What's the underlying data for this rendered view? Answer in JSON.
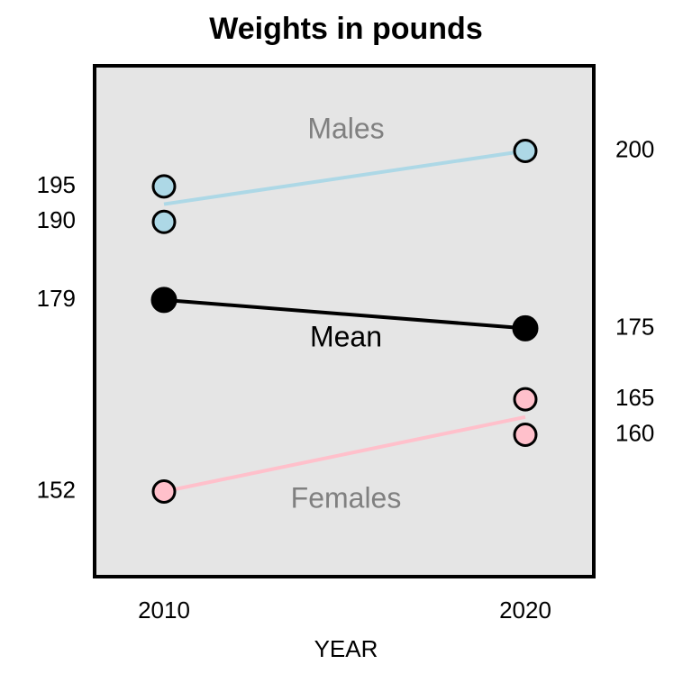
{
  "chart_data": {
    "type": "line",
    "title": "Weights in pounds",
    "xlabel": "YEAR",
    "ylabel": "",
    "categories": [
      "2010",
      "2020"
    ],
    "ylim": [
      140,
      212
    ],
    "grid": false,
    "series": [
      {
        "name": "Males",
        "color": "#add8e6",
        "line": [
          192.5,
          200
        ],
        "points": [
          [
            0,
            195
          ],
          [
            0,
            190
          ],
          [
            1,
            200
          ]
        ]
      },
      {
        "name": "Mean",
        "color": "#000000",
        "line": [
          179,
          175
        ],
        "points": [
          [
            0,
            179
          ],
          [
            1,
            175
          ]
        ]
      },
      {
        "name": "Females",
        "color": "#ffc0cb",
        "line": [
          152,
          162.5
        ],
        "points": [
          [
            0,
            152
          ],
          [
            1,
            165
          ],
          [
            1,
            160
          ]
        ]
      }
    ],
    "value_labels": {
      "left": [
        "195",
        "190",
        "179",
        "152"
      ],
      "right": [
        "200",
        "175",
        "165",
        "160"
      ]
    },
    "label_colors": {
      "Males": "#808080",
      "Mean": "#000000",
      "Females": "#808080"
    },
    "panel_background": "#e5e5e5"
  }
}
